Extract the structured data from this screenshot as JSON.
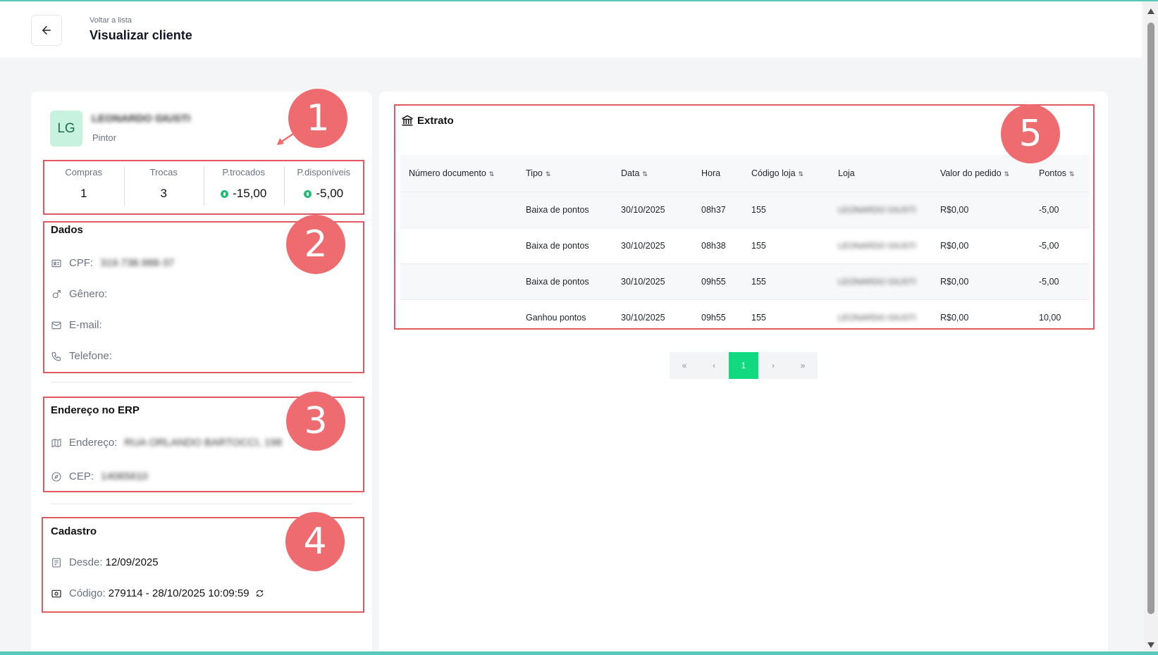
{
  "header": {
    "breadcrumb": "Voltar a lista",
    "title": "Visualizar cliente"
  },
  "client": {
    "initials": "LG",
    "name": "LEONARDO GIUSTI",
    "role": "Pintor"
  },
  "stats": [
    {
      "label": "Compras",
      "value": "1",
      "coin": false
    },
    {
      "label": "Trocas",
      "value": "3",
      "coin": false
    },
    {
      "label": "P.trocados",
      "value": "-15,00",
      "coin": true
    },
    {
      "label": "P.disponíveis",
      "value": "-5,00",
      "coin": true
    }
  ],
  "dados": {
    "title": "Dados",
    "cpf_label": "CPF:",
    "cpf_value": "319.738.988-37",
    "genero_label": "Gênero:",
    "email_label": "E-mail:",
    "telefone_label": "Telefone:"
  },
  "endereco": {
    "title": "Endereço no ERP",
    "endereco_label": "Endereço:",
    "endereco_value": "RUA ORLANDO BARTOCCI, 198",
    "cep_label": "CEP:",
    "cep_value": "14065610"
  },
  "cadastro": {
    "title": "Cadastro",
    "desde_label": "Desde:",
    "desde_value": "12/09/2025",
    "codigo_label": "Código:",
    "codigo_value": "279114 - 28/10/2025 10:09:59"
  },
  "extrato": {
    "title": "Extrato",
    "columns": [
      "Número documento",
      "Tipo",
      "Data",
      "Hora",
      "Código loja",
      "Loja",
      "Valor do pedido",
      "Pontos"
    ],
    "rows": [
      {
        "doc": "",
        "tipo": "Baixa de pontos",
        "data": "30/10/2025",
        "hora": "08h37",
        "codigo": "155",
        "loja": "LEONARDO GIUSTI",
        "valor": "R$0,00",
        "pontos": "-5,00"
      },
      {
        "doc": "",
        "tipo": "Baixa de pontos",
        "data": "30/10/2025",
        "hora": "08h38",
        "codigo": "155",
        "loja": "LEONARDO GIUSTI",
        "valor": "R$0,00",
        "pontos": "-5,00"
      },
      {
        "doc": "",
        "tipo": "Baixa de pontos",
        "data": "30/10/2025",
        "hora": "09h55",
        "codigo": "155",
        "loja": "LEONARDO GIUSTI",
        "valor": "R$0,00",
        "pontos": "-5,00"
      },
      {
        "doc": "",
        "tipo": "Ganhou pontos",
        "data": "30/10/2025",
        "hora": "09h55",
        "codigo": "155",
        "loja": "LEONARDO GIUSTI",
        "valor": "R$0,00",
        "pontos": "10,00"
      }
    ]
  },
  "pagination": {
    "first": "«",
    "prev": "‹",
    "current": "1",
    "next": "›",
    "last": "»"
  },
  "annotations": [
    "1",
    "2",
    "3",
    "4",
    "5"
  ],
  "colors": {
    "accent": "#10d97f",
    "annotation": "#ee6b6f",
    "avatar_bg": "#c8f2e0"
  }
}
